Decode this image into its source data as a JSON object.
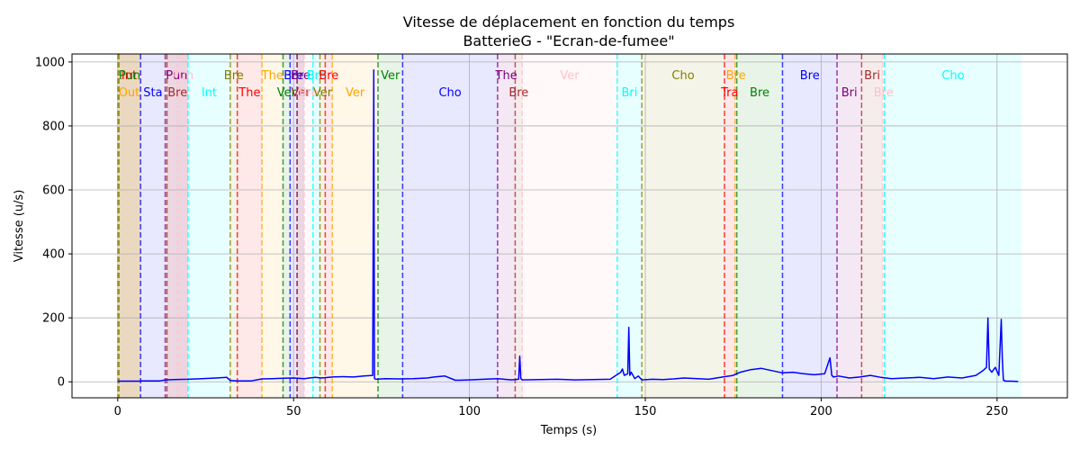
{
  "chart_data": {
    "type": "line",
    "title": "Vitesse de déplacement en fonction du temps",
    "subtitle": "BatterieG - \"Ecran-de-fumee\"",
    "xlabel": "Temps (s)",
    "ylabel": "Vitesse (u/s)",
    "xlim": [
      -13,
      270
    ],
    "ylim": [
      -50,
      1025
    ],
    "xticks": [
      0,
      50,
      100,
      150,
      200,
      250
    ],
    "yticks": [
      0,
      200,
      400,
      600,
      800,
      1000
    ],
    "grid": true,
    "line_color": "#0000ff",
    "segments": [
      {
        "start": 0,
        "end": 6.5,
        "label": "Int",
        "row": 0,
        "color": "#ff0000"
      },
      {
        "start": 0.3,
        "end": 6.5,
        "label": "Pun",
        "row": 0,
        "color": "#008000"
      },
      {
        "start": 0,
        "end": 6.5,
        "label": "Out",
        "row": 1,
        "color": "#ffa500"
      },
      {
        "start": 6.5,
        "end": 13.5,
        "label": "Sta",
        "row": 1,
        "color": "#0000ff"
      },
      {
        "start": 13.5,
        "end": 20,
        "label": "Pun",
        "row": 0,
        "color": "#800080"
      },
      {
        "start": 14,
        "end": 20,
        "label": "Bre",
        "row": 1,
        "color": "#a52a2a"
      },
      {
        "start": 17,
        "end": 20,
        "label": "Pun",
        "row": 0,
        "color": "#ffc0cb"
      },
      {
        "start": 20,
        "end": 32,
        "label": "Int",
        "row": 1,
        "color": "#00ffff"
      },
      {
        "start": 32,
        "end": 34,
        "label": "Bre",
        "row": 0,
        "color": "#808000"
      },
      {
        "start": 34,
        "end": 41,
        "label": "The",
        "row": 1,
        "color": "#ff0000"
      },
      {
        "start": 41,
        "end": 47,
        "label": "The",
        "row": 0,
        "color": "#ffa500"
      },
      {
        "start": 47,
        "end": 49,
        "label": "Ver",
        "row": 1,
        "color": "#008000"
      },
      {
        "start": 49,
        "end": 51,
        "label": "Bre",
        "row": 0,
        "color": "#0000ff"
      },
      {
        "start": 51,
        "end": 53,
        "label": "Bre",
        "row": 0,
        "color": "#800080"
      },
      {
        "start": 51,
        "end": 53,
        "label": "Ver",
        "row": 1,
        "color": "#a52a2a"
      },
      {
        "start": 53,
        "end": 55.5,
        "label": "Bre",
        "row": 1,
        "color": "#ffc0cb"
      },
      {
        "start": 55.5,
        "end": 57.5,
        "label": "Bre",
        "row": 0,
        "color": "#00ffff"
      },
      {
        "start": 57.5,
        "end": 59,
        "label": "Ver",
        "row": 1,
        "color": "#808000"
      },
      {
        "start": 59,
        "end": 61,
        "label": "Bre",
        "row": 0,
        "color": "#ff0000"
      },
      {
        "start": 61,
        "end": 74,
        "label": "Ver",
        "row": 1,
        "color": "#ffa500"
      },
      {
        "start": 74,
        "end": 81,
        "label": "Ver",
        "row": 0,
        "color": "#008000"
      },
      {
        "start": 81,
        "end": 108,
        "label": "Cho",
        "row": 1,
        "color": "#0000ff"
      },
      {
        "start": 108,
        "end": 113,
        "label": "The",
        "row": 0,
        "color": "#800080"
      },
      {
        "start": 113,
        "end": 115,
        "label": "Bre",
        "row": 1,
        "color": "#a52a2a"
      },
      {
        "start": 115,
        "end": 142,
        "label": "Ver",
        "row": 0,
        "color": "#ffc0cb"
      },
      {
        "start": 142,
        "end": 149,
        "label": "Bri",
        "row": 1,
        "color": "#00ffff"
      },
      {
        "start": 149,
        "end": 172.5,
        "label": "Cho",
        "row": 0,
        "color": "#808000"
      },
      {
        "start": 172.5,
        "end": 175.5,
        "label": "Tra",
        "row": 1,
        "color": "#ff0000"
      },
      {
        "start": 175.5,
        "end": 176,
        "label": "Bre",
        "row": 0,
        "color": "#ffa500"
      },
      {
        "start": 176,
        "end": 189,
        "label": "Bre",
        "row": 1,
        "color": "#008000"
      },
      {
        "start": 189,
        "end": 204.5,
        "label": "Bre",
        "row": 0,
        "color": "#0000ff"
      },
      {
        "start": 204.5,
        "end": 211.5,
        "label": "Bri",
        "row": 1,
        "color": "#800080"
      },
      {
        "start": 211.5,
        "end": 217.5,
        "label": "Bri",
        "row": 0,
        "color": "#a52a2a"
      },
      {
        "start": 217.5,
        "end": 218,
        "label": "Bre",
        "row": 1,
        "color": "#ffc0cb"
      },
      {
        "start": 218,
        "end": 257,
        "label": "Cho",
        "row": 0,
        "color": "#00ffff"
      }
    ],
    "series": [
      {
        "x": [
          0,
          6,
          6.5,
          12,
          13.5,
          16,
          20,
          24,
          28,
          31,
          32,
          34,
          38,
          41,
          44,
          47,
          50,
          53,
          56,
          58,
          61,
          64,
          67,
          70,
          72.5,
          72.8,
          73,
          73.4,
          76,
          80,
          84,
          88,
          90,
          93,
          96,
          100,
          104,
          108,
          112,
          114,
          114.3,
          114.6,
          115,
          120,
          125,
          130,
          135,
          140,
          143,
          143.5,
          144,
          145,
          145.3,
          145.6,
          146,
          147,
          148,
          149,
          152,
          155,
          158,
          161,
          165,
          168,
          172,
          175,
          177,
          180,
          183,
          186,
          189,
          192,
          195,
          198,
          201,
          202.5,
          203,
          203.5,
          205,
          208,
          211,
          214,
          217,
          220,
          224,
          228,
          232,
          236,
          240,
          244,
          246,
          247,
          247.4,
          247.8,
          248.5,
          249.5,
          250.5,
          251.2,
          251.5,
          251.8,
          252.5,
          254,
          256
        ],
        "y": [
          2,
          2,
          3,
          3,
          6,
          7,
          8,
          10,
          12,
          14,
          4,
          3,
          3,
          9,
          10,
          11,
          12,
          10,
          14,
          12,
          15,
          16,
          15,
          18,
          20,
          975,
          10,
          8,
          10,
          9,
          10,
          12,
          15,
          18,
          5,
          6,
          8,
          10,
          6,
          8,
          80,
          10,
          6,
          7,
          8,
          6,
          7,
          8,
          30,
          40,
          20,
          25,
          170,
          20,
          30,
          10,
          18,
          6,
          8,
          7,
          9,
          12,
          10,
          8,
          15,
          20,
          30,
          38,
          42,
          35,
          28,
          30,
          25,
          22,
          25,
          75,
          20,
          15,
          18,
          12,
          15,
          20,
          14,
          10,
          12,
          14,
          10,
          15,
          12,
          20,
          35,
          45,
          200,
          40,
          30,
          45,
          20,
          195,
          70,
          5,
          2,
          2,
          1
        ]
      }
    ]
  }
}
